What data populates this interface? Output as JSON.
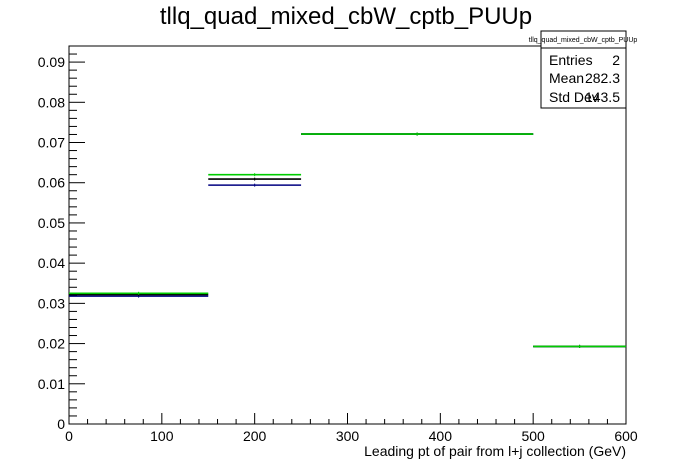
{
  "title": "tllq_quad_mixed_cbW_cptb_PUUp",
  "stats_box": {
    "name": "tllq_quad_mixed_cbW_cptb_PUUp",
    "rows": [
      {
        "label": "Entries",
        "value": "2"
      },
      {
        "label": "Mean",
        "value": "282.3"
      },
      {
        "label": "Std Dev",
        "value": "143.5"
      }
    ]
  },
  "chart_data": {
    "type": "histogram",
    "title": "tllq_quad_mixed_cbW_cptb_PUUp",
    "xlabel": "Leading pt of pair from l+j collection (GeV)",
    "ylabel": "",
    "xlim": [
      0,
      600
    ],
    "ylim": [
      0,
      0.094
    ],
    "x_ticks": [
      0,
      100,
      200,
      300,
      400,
      500,
      600
    ],
    "y_ticks": [
      0,
      0.01,
      0.02,
      0.03,
      0.04,
      0.05,
      0.06,
      0.07,
      0.08,
      0.09
    ],
    "y_tick_labels": [
      "0",
      "0.01",
      "0.02",
      "0.03",
      "0.04",
      "0.05",
      "0.06",
      "0.07",
      "0.08",
      "0.09"
    ],
    "bin_edges": [
      0,
      150,
      250,
      500,
      600
    ],
    "series": [
      {
        "color": "#000080",
        "values": [
          0.0318,
          0.0594,
          0.0721,
          0.0193
        ]
      },
      {
        "color": "#000000",
        "values": [
          0.0322,
          0.0609,
          0.0721,
          0.0193
        ]
      },
      {
        "color": "#00cc00",
        "values": [
          0.0325,
          0.062,
          0.0721,
          0.0193
        ]
      }
    ],
    "grid": false,
    "legend": "stats box top-right"
  }
}
